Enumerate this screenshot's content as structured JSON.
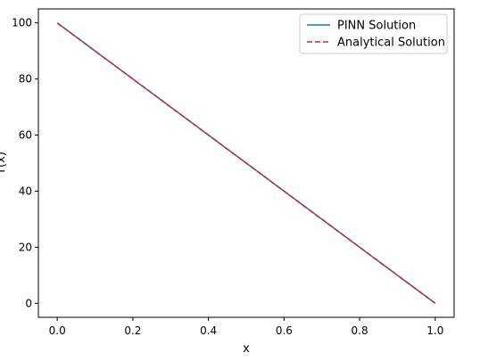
{
  "chart_data": {
    "type": "line",
    "xlabel": "x",
    "ylabel": "T(x)",
    "xlim": [
      -0.05,
      1.05
    ],
    "ylim": [
      -5,
      105
    ],
    "x_ticks": [
      0.0,
      0.2,
      0.4,
      0.6,
      0.8,
      1.0
    ],
    "x_tick_labels": [
      "0.0",
      "0.2",
      "0.4",
      "0.6",
      "0.8",
      "1.0"
    ],
    "y_ticks": [
      0,
      20,
      40,
      60,
      80,
      100
    ],
    "y_tick_labels": [
      "0",
      "20",
      "40",
      "60",
      "80",
      "100"
    ],
    "grid": false,
    "legend": {
      "location": "upper right"
    },
    "series": [
      {
        "name": "PINN Solution",
        "style": "solid",
        "color": "#1f77b4",
        "x": [
          0.0,
          1.0
        ],
        "y": [
          100,
          0
        ]
      },
      {
        "name": "Analytical Solution",
        "style": "dashed",
        "color": "#d62728",
        "x": [
          0.0,
          1.0
        ],
        "y": [
          100,
          0
        ]
      }
    ]
  }
}
